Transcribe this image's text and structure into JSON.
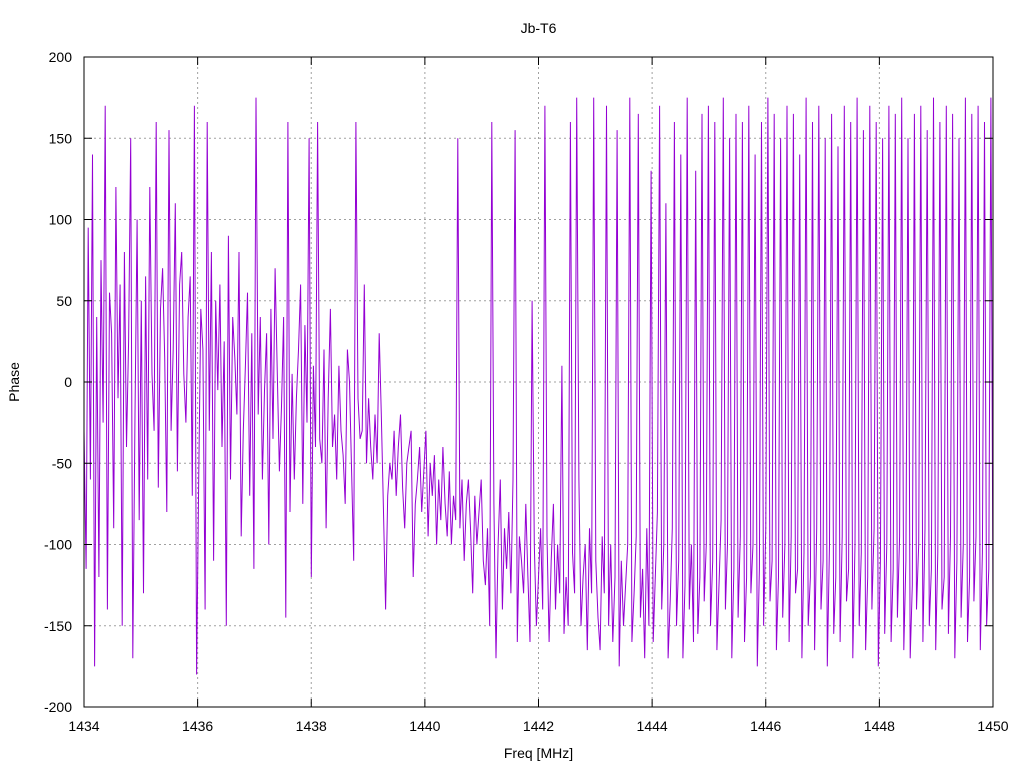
{
  "chart_data": {
    "type": "line",
    "title": "Jb-T6",
    "xlabel": "Freq [MHz]",
    "ylabel": "Phase",
    "xlim": [
      1434,
      1450
    ],
    "ylim": [
      -200,
      200
    ],
    "x_ticks": [
      "1434",
      "1436",
      "1438",
      "1440",
      "1442",
      "1444",
      "1446",
      "1448",
      "1450"
    ],
    "y_ticks": [
      "200",
      "150",
      "100",
      "50",
      "0",
      "-50",
      "-100",
      "-150",
      "-200"
    ],
    "grid": true,
    "legend": "none",
    "series": [
      {
        "color": "#9400d3",
        "x_start": 1434,
        "x_end": 1450,
        "y": [
          -30,
          -115,
          95,
          -60,
          140,
          -175,
          40,
          -120,
          75,
          -25,
          170,
          -140,
          55,
          30,
          -90,
          120,
          -10,
          60,
          -150,
          80,
          -40,
          25,
          150,
          -170,
          -20,
          100,
          -85,
          50,
          -130,
          65,
          -60,
          120,
          5,
          -30,
          160,
          -65,
          45,
          70,
          15,
          -80,
          155,
          -30,
          20,
          110,
          -55,
          60,
          80,
          5,
          -25,
          40,
          65,
          -70,
          170,
          -180,
          -60,
          45,
          20,
          -140,
          160,
          -30,
          80,
          -110,
          50,
          -5,
          60,
          -40,
          25,
          -150,
          90,
          -60,
          40,
          15,
          -20,
          80,
          -95,
          -30,
          10,
          55,
          -70,
          30,
          -115,
          175,
          -20,
          40,
          -60,
          -5,
          30,
          -100,
          45,
          -35,
          70,
          5,
          -55,
          -15,
          40,
          -145,
          160,
          -80,
          5,
          -60,
          -10,
          20,
          60,
          -75,
          35,
          -25,
          150,
          -120,
          10,
          -40,
          160,
          -35,
          -50,
          20,
          -90,
          -10,
          45,
          -40,
          -20,
          -60,
          10,
          -30,
          -45,
          -75,
          20,
          0,
          -55,
          -110,
          160,
          -10,
          -35,
          -30,
          60,
          -50,
          -10,
          -40,
          -60,
          -20,
          -50,
          30,
          -20,
          -80,
          -140,
          -70,
          -50,
          -60,
          -30,
          -70,
          -40,
          -20,
          -65,
          -90,
          -50,
          -40,
          -30,
          -120,
          -75,
          -60,
          -40,
          -80,
          -55,
          -30,
          -95,
          -50,
          -70,
          -45,
          -100,
          -60,
          -85,
          -40,
          -75,
          -95,
          -55,
          -100,
          -70,
          -85,
          150,
          -90,
          -60,
          -110,
          -75,
          -60,
          -90,
          -130,
          -70,
          -100,
          -80,
          -60,
          -110,
          -125,
          -90,
          -150,
          160,
          -75,
          -170,
          -100,
          -60,
          -140,
          -90,
          -115,
          -80,
          -130,
          -60,
          155,
          -160,
          -95,
          -110,
          -130,
          -75,
          -120,
          -160,
          50,
          -100,
          -150,
          -120,
          -90,
          -140,
          170,
          -95,
          -160,
          -110,
          -75,
          -140,
          -100,
          -130,
          10,
          -155,
          -120,
          -150,
          160,
          -105,
          -130,
          175,
          -60,
          -150,
          -120,
          -100,
          -165,
          -90,
          -130,
          175,
          -110,
          -145,
          -165,
          -95,
          -130,
          170,
          -150,
          -100,
          -160,
          -120,
          155,
          -175,
          -110,
          -150,
          -125,
          -100,
          175,
          -160,
          -130,
          -95,
          165,
          -145,
          -115,
          -170,
          -90,
          -150,
          130,
          -160,
          -120,
          -80,
          170,
          -140,
          -100,
          110,
          -170,
          -135,
          -90,
          160,
          -150,
          -110,
          140,
          -170,
          -125,
          175,
          -140,
          -100,
          -160,
          130,
          -155,
          -120,
          165,
          -135,
          -100,
          170,
          -150,
          -110,
          160,
          -165,
          -125,
          -85,
          175,
          -140,
          -100,
          150,
          -170,
          -115,
          165,
          -145,
          -95,
          160,
          -160,
          -120,
          170,
          -130,
          -100,
          140,
          -175,
          -115,
          160,
          -150,
          -90,
          175,
          -135,
          -110,
          165,
          -165,
          -120,
          150,
          -145,
          -100,
          170,
          -160,
          -95,
          165,
          -130,
          -115,
          140,
          -170,
          -105,
          175,
          -150,
          -120,
          160,
          -165,
          -90,
          170,
          -140,
          -110,
          150,
          -175,
          -100,
          165,
          -155,
          -120,
          145,
          -160,
          -95,
          170,
          -135,
          -115,
          160,
          -170,
          -100,
          175,
          -150,
          -105,
          155,
          -165,
          -120,
          170,
          -140,
          -90,
          160,
          -175,
          -110,
          150,
          -155,
          -100,
          170,
          -160,
          -115,
          165,
          -145,
          -95,
          175,
          -165,
          -110,
          150,
          -170,
          -125,
          165,
          -140,
          -100,
          170,
          -160,
          -90,
          155,
          -150,
          -115,
          175,
          -165,
          -105,
          160,
          -140,
          -120,
          170,
          -155,
          -95,
          165,
          -170,
          -110,
          150,
          -145,
          -100,
          175,
          -160,
          -120,
          165,
          -135,
          -95,
          170,
          -165,
          -105,
          160,
          -150,
          -115,
          175,
          -140
        ]
      }
    ]
  }
}
